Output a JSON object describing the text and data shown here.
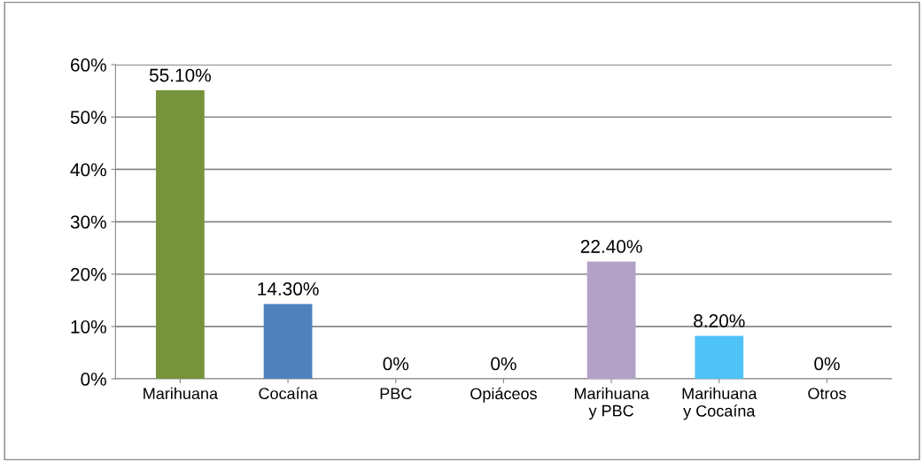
{
  "chart_data": {
    "type": "bar",
    "categories": [
      "Marihuana",
      "Cocaína",
      "PBC",
      "Opiáceos",
      "Marihuana\ny PBC",
      "Marihuana\ny Cocaína",
      "Otros"
    ],
    "values": [
      55.1,
      14.3,
      0,
      0,
      22.4,
      8.2,
      0
    ],
    "colors": [
      "#77933c",
      "#4f81bd",
      "#c9a100",
      "#a00000",
      "#b3a2c7",
      "#4fc3f7",
      "#00a04a"
    ],
    "value_labels": [
      "55.10%",
      "14.30%",
      "0%",
      "0%",
      "22.40%",
      "8.20%",
      "0%"
    ],
    "ylim": [
      0,
      60
    ],
    "yticks": [
      {
        "value": 0,
        "label": "0%"
      },
      {
        "value": 10,
        "label": "10%"
      },
      {
        "value": 20,
        "label": "20%"
      },
      {
        "value": 30,
        "label": "30%"
      },
      {
        "value": 40,
        "label": "40%"
      },
      {
        "value": 50,
        "label": "50%"
      },
      {
        "value": 60,
        "label": "60%"
      }
    ],
    "grid": "y",
    "legend": false
  }
}
